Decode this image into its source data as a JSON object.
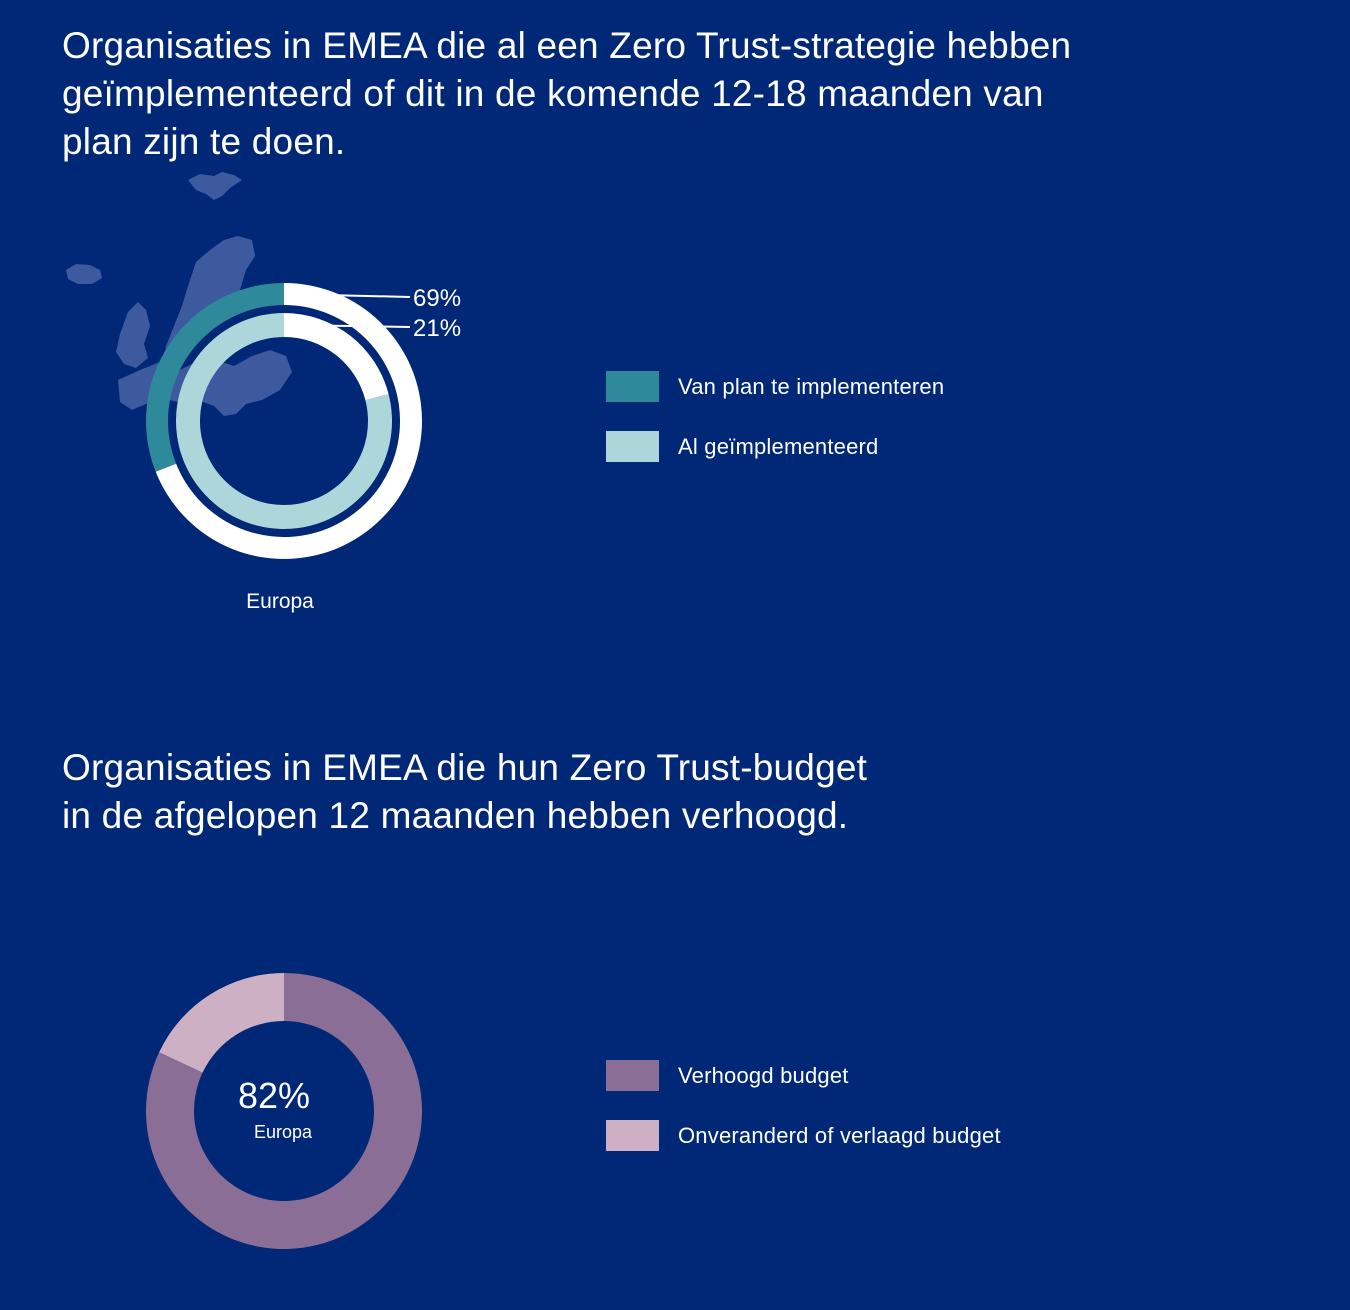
{
  "page": {
    "background": "#002877",
    "map_color": "#3d5a9e"
  },
  "section1": {
    "title": "Organisaties in EMEA die al een Zero Trust-strategie hebben\ngeïmplementeerd of dit in de komende 12-18 maanden van\nplan zijn te doen.",
    "legend": [
      {
        "label": "Van plan te implementeren",
        "color": "#2e8a9a"
      },
      {
        "label": "Al geïmplementeerd",
        "color": "#acd6d9"
      }
    ]
  },
  "section2": {
    "title": "Organisaties in EMEA die hun Zero Trust-budget\nin de afgelopen 12 maanden hebben verhoogd.",
    "legend": [
      {
        "label": "Verhoogd budget",
        "color": "#8a6e96"
      },
      {
        "label": "Onveranderd of verlaagd budget",
        "color": "#cdb0c4"
      }
    ]
  },
  "chart_data": [
    {
      "type": "pie",
      "subtype": "nested-donut",
      "title": "Organisaties in EMEA die al een Zero Trust-strategie hebben geïmplementeerd of dit in de komende 12-18 maanden van plan zijn te doen.",
      "category_label": "Europa",
      "series": [
        {
          "name": "Van plan te implementeren",
          "value": 69,
          "label": "69%",
          "color": "#2e8a9a",
          "remainder_color": "#ffffff",
          "ring": "outer"
        },
        {
          "name": "Al geïmplementeerd",
          "value": 21,
          "label": "21%",
          "color": "#acd6d9",
          "remainder_color": "#ffffff",
          "ring": "inner"
        }
      ]
    },
    {
      "type": "pie",
      "subtype": "donut",
      "title": "Organisaties in EMEA die hun Zero Trust-budget in de afgelopen 12 maanden hebben verhoogd.",
      "center_value": "82%",
      "center_label": "Europa",
      "slices": [
        {
          "name": "Verhoogd budget",
          "value": 82,
          "color": "#8a6e96"
        },
        {
          "name": "Onveranderd of verlaagd budget",
          "value": 18,
          "color": "#cdb0c4"
        }
      ]
    }
  ]
}
